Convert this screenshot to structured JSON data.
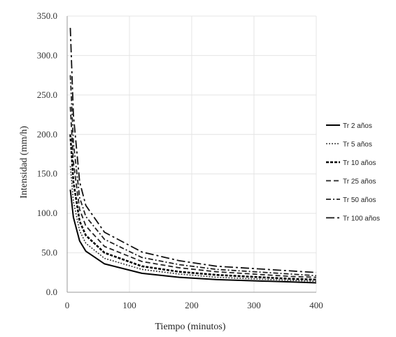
{
  "chart_data": {
    "type": "line",
    "xlabel": "Tiempo (minutos)",
    "ylabel": "Intensidad (mm/h)",
    "xlim": [
      0,
      400
    ],
    "ylim": [
      0,
      350
    ],
    "xticks": [
      0,
      100,
      200,
      300,
      400
    ],
    "yticks": [
      0.0,
      50.0,
      100.0,
      150.0,
      200.0,
      250.0,
      300.0,
      350.0
    ],
    "xtick_labels": [
      "0",
      "100",
      "200",
      "300",
      "400"
    ],
    "ytick_labels": [
      "0.0",
      "50.0",
      "100.0",
      "150.0",
      "200.0",
      "250.0",
      "300.0",
      "350.0"
    ],
    "grid": true,
    "legend_position": "right",
    "series": [
      {
        "name": "Tr 2 años",
        "dash": "solid",
        "color": "#000000",
        "x": [
          5,
          10,
          20,
          30,
          60,
          120,
          180,
          240,
          360,
          400
        ],
        "y": [
          130,
          95,
          65,
          52,
          36,
          24,
          19,
          16,
          13,
          12
        ]
      },
      {
        "name": "Tr 5 años",
        "dash": "dot",
        "color": "#333333",
        "x": [
          5,
          10,
          20,
          30,
          60,
          120,
          180,
          240,
          360,
          400
        ],
        "y": [
          160,
          115,
          78,
          62,
          43,
          29,
          23,
          19,
          15,
          14
        ]
      },
      {
        "name": "Tr 10 años",
        "dash": "densedash",
        "color": "#000000",
        "x": [
          5,
          10,
          20,
          30,
          60,
          120,
          180,
          240,
          360,
          400
        ],
        "y": [
          200,
          140,
          90,
          72,
          50,
          33,
          26,
          22,
          17,
          16
        ]
      },
      {
        "name": "Tr 25 años",
        "dash": "dash",
        "color": "#222222",
        "x": [
          5,
          10,
          20,
          30,
          60,
          120,
          180,
          240,
          360,
          400
        ],
        "y": [
          235,
          165,
          105,
          84,
          58,
          39,
          31,
          26,
          20,
          19
        ]
      },
      {
        "name": "Tr 50 años",
        "dash": "dashdot",
        "color": "#222222",
        "x": [
          5,
          10,
          20,
          30,
          60,
          120,
          180,
          240,
          360,
          400
        ],
        "y": [
          275,
          190,
          120,
          96,
          67,
          44,
          35,
          29,
          23,
          21
        ]
      },
      {
        "name": "Tr 100 años",
        "dash": "longdashdot",
        "color": "#111111",
        "x": [
          5,
          10,
          20,
          30,
          60,
          120,
          180,
          240,
          360,
          400
        ],
        "y": [
          335,
          225,
          140,
          110,
          76,
          51,
          40,
          33,
          27,
          25
        ]
      }
    ]
  }
}
